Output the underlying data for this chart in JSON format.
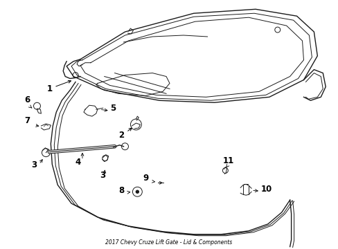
{
  "title": "2017 Chevy Cruze Lift Gate - Lid & Components",
  "bg_color": "#ffffff",
  "line_color": "#1a1a1a",
  "label_color": "#000000",
  "figsize": [
    4.89,
    3.6
  ],
  "dpi": 100
}
